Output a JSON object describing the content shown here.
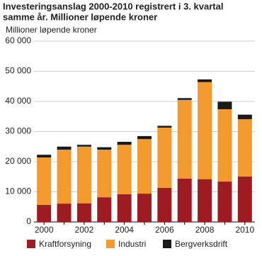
{
  "chart_data": {
    "type": "stacked_bar",
    "title": [
      "Investeringsanslag 2000-2010 registrert i 3. kvartal",
      "samme år. Millioner løpende kroner"
    ],
    "y_axis_label": "Millioner løpende kroner",
    "categories": [
      "2000",
      null,
      "2002",
      null,
      "2004",
      null,
      "2006",
      null,
      "2008",
      null,
      "2010"
    ],
    "series": [
      {
        "name": "Kraftforsyning",
        "color": "#9e1b21",
        "values": [
          5700,
          6100,
          6200,
          8200,
          9200,
          9400,
          11300,
          14400,
          14200,
          13400,
          15100
        ]
      },
      {
        "name": "Industri",
        "color": "#f39a2f",
        "values": [
          15700,
          17900,
          18800,
          15800,
          16400,
          18100,
          20000,
          26100,
          32200,
          24000,
          19000
        ]
      },
      {
        "name": "Bergverksdrift",
        "color": "#1a1a1a",
        "values": [
          900,
          1000,
          600,
          800,
          1000,
          1000,
          600,
          600,
          900,
          2500,
          1500
        ]
      }
    ],
    "ylim": [
      0,
      60000
    ],
    "yticks": [
      0,
      {
        "value": 10000,
        "label": "10 000"
      },
      {
        "value": 20000,
        "label": "20 000"
      },
      {
        "value": 30000,
        "label": "30 000"
      },
      {
        "value": 40000,
        "label": "40 000"
      },
      {
        "value": 50000,
        "label": "50 000"
      },
      {
        "value": 60000,
        "label": "60 000"
      }
    ],
    "grid": true,
    "legend": "bottom"
  }
}
